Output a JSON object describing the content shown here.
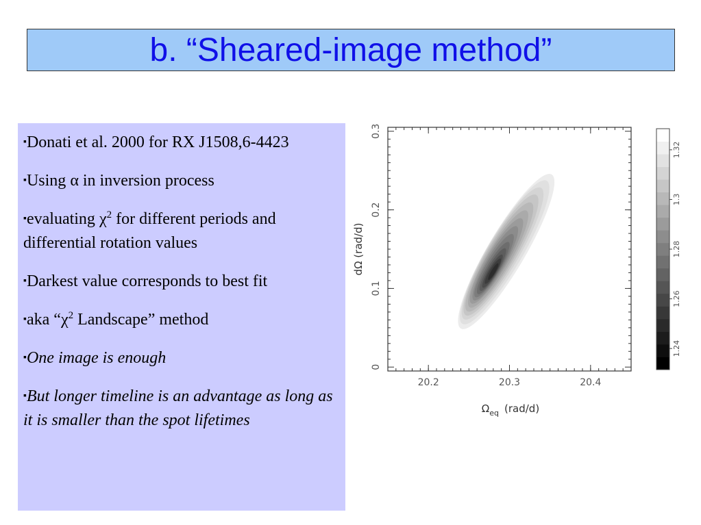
{
  "title": "b. “Sheared-image method”",
  "bullets": [
    {
      "marker": "▪",
      "parts": [
        "Donati et al. 2000 for RX J1508,6-4423"
      ]
    },
    {
      "marker": "▪",
      "parts": [
        "Using ",
        "α",
        " in inversion process"
      ]
    },
    {
      "marker": "▪",
      "parts": [
        "evaluating ",
        "χ",
        "2",
        " for different periods and differential rotation values"
      ]
    },
    {
      "marker": "▪",
      "parts": [
        "Darkest value corresponds to best fit"
      ]
    },
    {
      "marker": "▪",
      "parts": [
        "aka “",
        "χ",
        "2",
        " Landscape” method"
      ]
    },
    {
      "marker": "▪",
      "parts": [
        "One image is enough"
      ]
    },
    {
      "marker": "▪",
      "parts": [
        "But longer timeline is an advantage as long as it is smaller than the spot lifetimes"
      ]
    }
  ],
  "chart_data": {
    "type": "heatmap",
    "xlabel_main": "Ω",
    "xlabel_sub": "eq",
    "xlabel_unit": "(rad/d)",
    "ylabel": "dΩ  (rad/d)",
    "xlim": [
      20.15,
      20.45
    ],
    "ylim": [
      -0.005,
      0.305
    ],
    "xticks": [
      {
        "value": 20.2,
        "label": "20.2"
      },
      {
        "value": 20.3,
        "label": "20.3"
      },
      {
        "value": 20.4,
        "label": "20.4"
      }
    ],
    "yticks": [
      {
        "value": 0,
        "label": "0"
      },
      {
        "value": 0.1,
        "label": "0.1"
      },
      {
        "value": 0.2,
        "label": "0.2"
      },
      {
        "value": 0.3,
        "label": "0.3"
      }
    ],
    "minimum": {
      "x": 20.284,
      "y": 0.125
    },
    "levels": [
      {
        "value": 1.317,
        "color": "#ececec",
        "ends": [
          [
            20.24,
            0.049
          ],
          [
            20.352,
            0.245
          ]
        ]
      },
      {
        "value": 1.312,
        "color": "#e0e0e0",
        "ends": [
          [
            20.242,
            0.055
          ],
          [
            20.346,
            0.237
          ]
        ]
      },
      {
        "value": 1.307,
        "color": "#d4d4d4",
        "ends": [
          [
            20.244,
            0.061
          ],
          [
            20.339,
            0.228
          ]
        ]
      },
      {
        "value": 1.302,
        "color": "#c6c6c6",
        "ends": [
          [
            20.246,
            0.066
          ],
          [
            20.333,
            0.219
          ]
        ]
      },
      {
        "value": 1.297,
        "color": "#b8b8b8",
        "ends": [
          [
            20.248,
            0.071
          ],
          [
            20.327,
            0.209
          ]
        ]
      },
      {
        "value": 1.292,
        "color": "#aaaaaa",
        "ends": [
          [
            20.251,
            0.076
          ],
          [
            20.321,
            0.199
          ]
        ]
      },
      {
        "value": 1.287,
        "color": "#9b9b9b",
        "ends": [
          [
            20.253,
            0.081
          ],
          [
            20.315,
            0.189
          ]
        ]
      },
      {
        "value": 1.282,
        "color": "#8c8c8c",
        "ends": [
          [
            20.256,
            0.085
          ],
          [
            20.309,
            0.179
          ]
        ]
      },
      {
        "value": 1.277,
        "color": "#7d7d7d",
        "ends": [
          [
            20.258,
            0.089
          ],
          [
            20.304,
            0.169
          ]
        ]
      },
      {
        "value": 1.272,
        "color": "#6d6d6d",
        "ends": [
          [
            20.261,
            0.093
          ],
          [
            20.299,
            0.159
          ]
        ]
      },
      {
        "value": 1.267,
        "color": "#5d5d5d",
        "ends": [
          [
            20.264,
            0.097
          ],
          [
            20.295,
            0.151
          ]
        ]
      },
      {
        "value": 1.262,
        "color": "#4c4c4c",
        "ends": [
          [
            20.267,
            0.101
          ],
          [
            20.291,
            0.143
          ]
        ]
      },
      {
        "value": 1.257,
        "color": "#3c3c3c",
        "ends": [
          [
            20.27,
            0.106
          ],
          [
            20.289,
            0.138
          ]
        ]
      },
      {
        "value": 1.252,
        "color": "#2c2c2c",
        "ends": [
          [
            20.274,
            0.111
          ],
          [
            20.286,
            0.132
          ]
        ]
      }
    ],
    "colorbar": {
      "range": [
        1.2315,
        1.3285
      ],
      "band_colors": [
        "#000000",
        "#0e0e0e",
        "#1c1c1c",
        "#2a2a2a",
        "#383838",
        "#474747",
        "#555555",
        "#636363",
        "#717171",
        "#7f7f7f",
        "#8d8d8d",
        "#9b9b9b",
        "#aaaaaa",
        "#b8b8b8",
        "#c6c6c6",
        "#d4d4d4",
        "#e2e2e2",
        "#f0f0f0",
        "#ffffff"
      ],
      "ticks": [
        {
          "value": 1.24,
          "label": "1.24"
        },
        {
          "value": 1.26,
          "label": "1.26"
        },
        {
          "value": 1.28,
          "label": "1.28"
        },
        {
          "value": 1.3,
          "label": "1.3"
        },
        {
          "value": 1.32,
          "label": "1.32"
        }
      ]
    }
  }
}
